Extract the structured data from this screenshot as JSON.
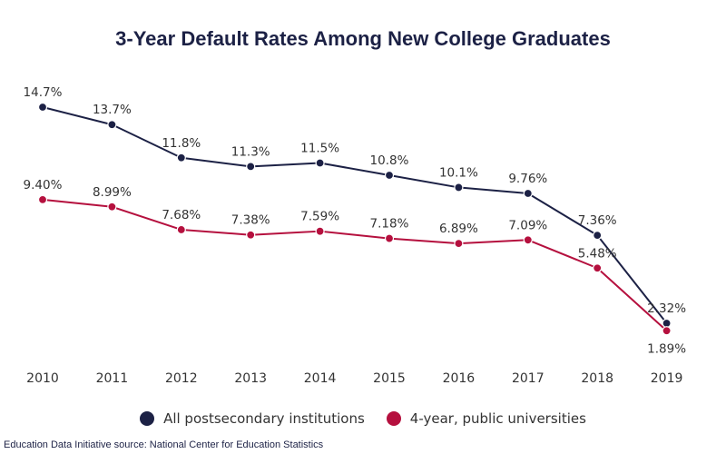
{
  "title": "3-Year Default Rates Among New College Graduates",
  "source": "Education Data Initiative source: National Center for Education Statistics",
  "colors": {
    "series1": "#1c2145",
    "series2": "#b5103e"
  },
  "chart_data": {
    "type": "line",
    "title": "3-Year Default Rates Among New College Graduates",
    "xlabel": "",
    "ylabel": "",
    "ylim": [
      0,
      16
    ],
    "grid": false,
    "legend_position": "bottom",
    "x": [
      "2010",
      "2011",
      "2012",
      "2013",
      "2014",
      "2015",
      "2016",
      "2017",
      "2018",
      "2019"
    ],
    "series": [
      {
        "name": "All postsecondary institutions",
        "color": "#1c2145",
        "values": [
          14.7,
          13.7,
          11.8,
          11.3,
          11.5,
          10.8,
          10.1,
          9.76,
          7.36,
          2.32
        ],
        "labels": [
          "14.7%",
          "13.7%",
          "11.8%",
          "11.3%",
          "11.5%",
          "10.8%",
          "10.1%",
          "9.76%",
          "7.36%",
          "2.32%"
        ]
      },
      {
        "name": "4-year, public universities",
        "color": "#b5103e",
        "values": [
          9.4,
          8.99,
          7.68,
          7.38,
          7.59,
          7.18,
          6.89,
          7.09,
          5.48,
          1.89
        ],
        "labels": [
          "9.40%",
          "8.99%",
          "7.68%",
          "7.38%",
          "7.59%",
          "7.18%",
          "6.89%",
          "7.09%",
          "5.48%",
          "1.89%"
        ]
      }
    ]
  }
}
